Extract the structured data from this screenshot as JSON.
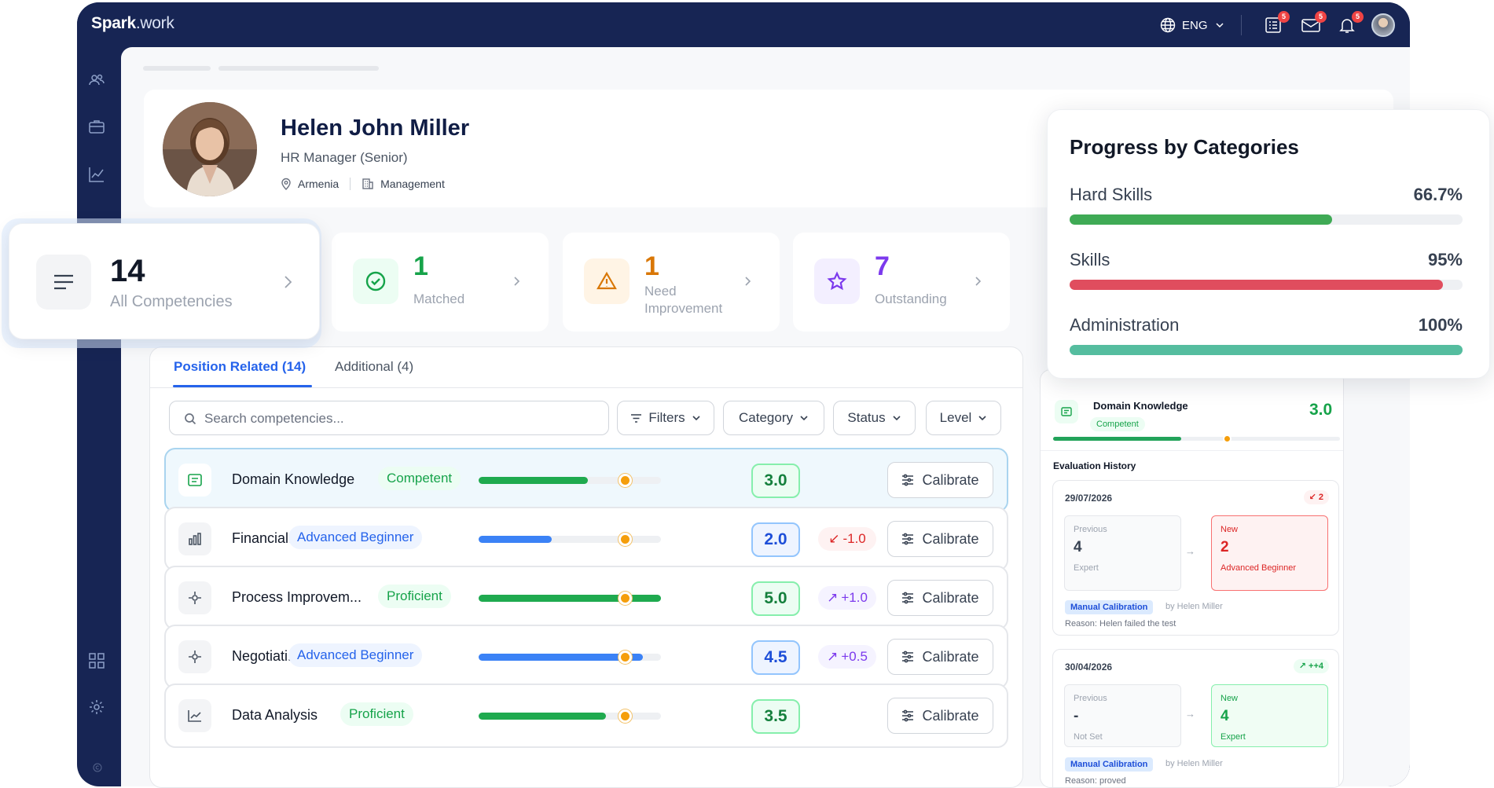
{
  "app": {
    "logo_main": "Spark",
    "logo_suffix": ".work",
    "language": "ENG",
    "badges": {
      "tasks": "5",
      "messages": "5",
      "notifications": "5"
    }
  },
  "profile": {
    "name": "Helen John Miller",
    "role": "HR Manager (Senior)",
    "location": "Armenia",
    "department": "Management"
  },
  "stats": {
    "all": {
      "value": "14",
      "label": "All Competencies"
    },
    "matched": {
      "value": "1",
      "label": "Matched",
      "color": "#16a34a"
    },
    "improvement": {
      "value": "1",
      "label": "Need Improvement",
      "color": "#d97706"
    },
    "outstanding": {
      "value": "7",
      "label": "Outstanding",
      "color": "#7c3aed"
    }
  },
  "tabs": [
    {
      "label": "Position Related (14)"
    },
    {
      "label": "Additional (4)"
    }
  ],
  "search": {
    "placeholder": "Search competencies..."
  },
  "filters": {
    "filters": "Filters",
    "category": "Category",
    "status": "Status",
    "level": "Level"
  },
  "calibrate_label": "Calibrate",
  "competencies": [
    {
      "name": "Domain Knowledge",
      "level": "Competent",
      "progress": 0.6,
      "target": 0.8,
      "score": "3.0",
      "delta": "",
      "color": "green"
    },
    {
      "name": "Financial...",
      "level": "Advanced Beginner",
      "progress": 0.4,
      "target": 0.8,
      "score": "2.0",
      "delta": "-1.0",
      "color": "blue"
    },
    {
      "name": "Process Improvem...",
      "level": "Proficient",
      "progress": 1.0,
      "target": 0.8,
      "score": "5.0",
      "delta": "+1.0",
      "color": "green"
    },
    {
      "name": "Negotiati...",
      "level": "Advanced Beginner",
      "progress": 0.9,
      "target": 0.8,
      "score": "4.5",
      "delta": "+0.5",
      "color": "blue"
    },
    {
      "name": "Data Analysis",
      "level": "Proficient",
      "progress": 0.7,
      "target": 0.8,
      "score": "3.5",
      "delta": "",
      "color": "green"
    }
  ],
  "detail": {
    "name": "Domain Knowledge",
    "level": "Competent",
    "score": "3.0",
    "history_title": "Evaluation History",
    "history": [
      {
        "date": "29/07/2026",
        "change": "2",
        "prev_label": "Previous",
        "prev_value": "4",
        "prev_level": "Expert",
        "new_label": "New",
        "new_value": "2",
        "new_level": "Advanced Beginner",
        "tag": "Manual Calibration",
        "by": "by Helen Miller",
        "reason": "Reason: Helen failed the test"
      },
      {
        "date": "30/04/2026",
        "change": "++4",
        "prev_label": "Previous",
        "prev_value": "-",
        "prev_level": "Not Set",
        "new_label": "New",
        "new_value": "4",
        "new_level": "Expert",
        "tag": "Manual Calibration",
        "by": "by Helen Miller",
        "reason": "Reason: proved"
      }
    ]
  },
  "progress": {
    "title": "Progress by Categories",
    "items": [
      {
        "label": "Hard Skills",
        "value": "66.7%",
        "fraction": 0.667,
        "color": "#3faa55"
      },
      {
        "label": "Skills",
        "value": "95%",
        "fraction": 0.95,
        "color": "#e04d5e"
      },
      {
        "label": "Administration",
        "value": "100%",
        "fraction": 1.0,
        "color": "#55bd9f"
      }
    ]
  }
}
